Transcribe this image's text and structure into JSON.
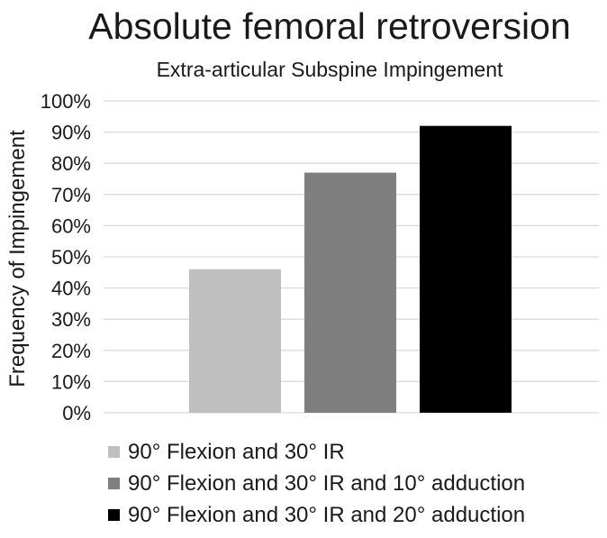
{
  "chart_data": {
    "type": "bar",
    "title": "Absolute femoral retroversion",
    "subtitle": "Extra-articular Subspine Impingement",
    "ylabel": "Frequency of Impingement",
    "xlabel": "",
    "ylim": [
      0,
      100
    ],
    "yticks": [
      "0%",
      "10%",
      "20%",
      "30%",
      "40%",
      "50%",
      "60%",
      "70%",
      "80%",
      "90%",
      "100%"
    ],
    "grid": true,
    "legend_position": "bottom",
    "series": [
      {
        "name": "90° Flexion and 30° IR",
        "value": 46,
        "color": "#bfbfbf"
      },
      {
        "name": "90° Flexion and 30° IR and 10° adduction",
        "value": 77,
        "color": "#7f7f7f"
      },
      {
        "name": "90° Flexion and 30° IR and 20° adduction",
        "value": 92,
        "color": "#000000"
      }
    ]
  }
}
